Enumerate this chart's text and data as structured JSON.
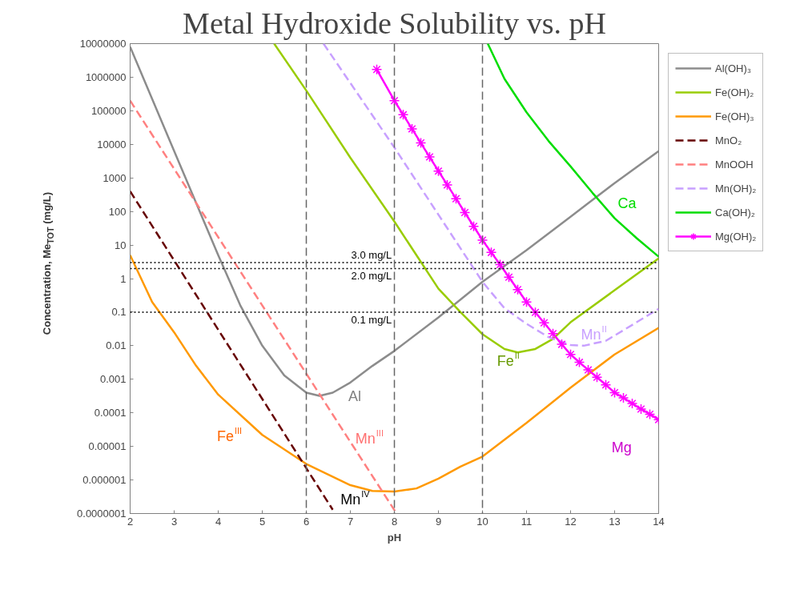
{
  "chart_data": {
    "type": "line",
    "title": "Metal Hydroxide Solubility vs. pH",
    "xlabel": "pH",
    "ylabel": "Concentration, Me$_{TOT}$ (mg/L)",
    "log": "y",
    "grid": false,
    "legend": "right",
    "marker": "none",
    "line_style": "solid",
    "xlim": [
      2,
      14
    ],
    "xticks": [
      2,
      3,
      4,
      5,
      6,
      7,
      8,
      9,
      10,
      11,
      12,
      13,
      14
    ],
    "ylim": [
      1e-07,
      10000000.0
    ],
    "yticks": [
      {
        "value": 1e-07,
        "label": "0.0000001"
      },
      {
        "value": 1e-06,
        "label": "0.000001"
      },
      {
        "value": 1e-05,
        "label": "0.00001"
      },
      {
        "value": 0.0001,
        "label": "0.0001"
      },
      {
        "value": 0.001,
        "label": "0.001"
      },
      {
        "value": 0.01,
        "label": "0.01"
      },
      {
        "value": 0.1,
        "label": "0.1"
      },
      1,
      10,
      100,
      1000,
      10000,
      100000,
      1000000,
      10000000
    ],
    "series": [
      {
        "name": "Al(OH)₃",
        "color": "#8c8c8c",
        "x": [
          2,
          3,
          4,
          4.5,
          5,
          5.5,
          6,
          6.3,
          6.6,
          7,
          7.5,
          8,
          9,
          10,
          11,
          12,
          13,
          14
        ],
        "values": [
          8000000,
          6300,
          5,
          0.16,
          0.01,
          0.0013,
          0.0004,
          0.00032,
          0.0004,
          0.0008,
          0.0025,
          0.007,
          0.07,
          0.8,
          7,
          70,
          700,
          6300
        ]
      },
      {
        "name": "Fe(OH)₂",
        "color": "#99cc00",
        "x": [
          5.27,
          6,
          7,
          8,
          9,
          9.5,
          10,
          10.5,
          10.8,
          11.2,
          11.6,
          12,
          13,
          14
        ],
        "values": [
          10000000,
          400000,
          4000,
          50,
          0.5,
          0.1,
          0.022,
          0.008,
          0.0063,
          0.008,
          0.016,
          0.05,
          0.45,
          4
        ]
      },
      {
        "name": "Fe(OH)₃",
        "color": "#ff9900",
        "x": [
          2,
          2.5,
          3,
          3.5,
          4,
          5,
          6,
          7,
          7.5,
          8,
          8.5,
          9,
          9.5,
          10,
          11,
          12,
          13,
          14
        ],
        "values": [
          5,
          0.2,
          0.025,
          0.0025,
          0.00035,
          2.2e-05,
          3e-06,
          7e-07,
          4.7e-07,
          4.5e-07,
          5.6e-07,
          1.1e-06,
          2.5e-06,
          5e-06,
          5e-05,
          0.00056,
          0.0055,
          0.034
        ]
      },
      {
        "name": "MnO₂",
        "color": "#660000",
        "line_style": "dashed",
        "x": [
          2,
          6.6
        ],
        "values": [
          400,
          1.3e-07
        ]
      },
      {
        "name": "MnOOH",
        "color": "#ff8080",
        "line_style": "dashed",
        "x": [
          2,
          8.05
        ],
        "values": [
          200000,
          1e-07
        ]
      },
      {
        "name": "Mn(OH)₂",
        "color": "#c8a0ff",
        "line_style": "dashed",
        "x": [
          6.39,
          8,
          10,
          10.5,
          11,
          11.5,
          12,
          12.3,
          12.8,
          13.5,
          14
        ],
        "values": [
          10000000,
          8000,
          0.8,
          0.13,
          0.045,
          0.018,
          0.0105,
          0.01,
          0.014,
          0.05,
          0.126
        ]
      },
      {
        "name": "Ca(OH)₂",
        "color": "#00dd00",
        "x": [
          10.12,
          10.5,
          11,
          11.5,
          12,
          12.5,
          13,
          13.5,
          14
        ],
        "values": [
          10000000,
          890000,
          90000,
          12600,
          2200,
          355,
          63,
          16,
          4.5
        ]
      },
      {
        "name": "Mg(OH)₂",
        "color": "#ff00ff",
        "marker": "cross",
        "x": [
          7.6,
          8.0,
          8.2,
          8.4,
          8.6,
          8.8,
          9.0,
          9.2,
          9.4,
          9.6,
          9.8,
          10.0,
          10.2,
          10.4,
          10.6,
          10.8,
          11.0,
          11.2,
          11.4,
          11.6,
          11.8,
          12.0,
          12.2,
          12.4,
          12.6,
          12.8,
          13.0,
          13.2,
          13.4,
          13.6,
          13.8,
          14.0
        ],
        "values": [
          1700000,
          200000,
          76000,
          29000,
          11000,
          4200,
          1600,
          620,
          240,
          93,
          36,
          14,
          6,
          2.6,
          1.1,
          0.47,
          0.2,
          0.098,
          0.048,
          0.023,
          0.011,
          0.0055,
          0.0032,
          0.0019,
          0.00115,
          0.00068,
          0.0004,
          0.00028,
          0.00019,
          0.00013,
          9.1e-05,
          6.3e-05
        ]
      }
    ],
    "ref_lines": [
      {
        "axis": "y",
        "value": 3,
        "label": "3.0 mg/L",
        "color": "#000000",
        "line_style": "dotted"
      },
      {
        "axis": "y",
        "value": 2,
        "label": "2.0 mg/L",
        "color": "#000000",
        "line_style": "dotted"
      },
      {
        "axis": "y",
        "value": 0.1,
        "label": "0.1 mg/L",
        "color": "#000000",
        "line_style": "dotted"
      },
      {
        "axis": "x",
        "value": 6,
        "color": "#666666",
        "line_style": "dashed"
      },
      {
        "axis": "x",
        "value": 8,
        "color": "#666666",
        "line_style": "dashed"
      },
      {
        "axis": "x",
        "value": 10,
        "color": "#666666",
        "line_style": "dashed"
      }
    ],
    "annotations": [
      "Al",
      "Fe$^{III}$",
      "Mn$^{III}$",
      "Mn$^{IV}$",
      "Fe$^{II}$",
      "Mn$^{II}$",
      "Ca",
      "Mg"
    ]
  }
}
